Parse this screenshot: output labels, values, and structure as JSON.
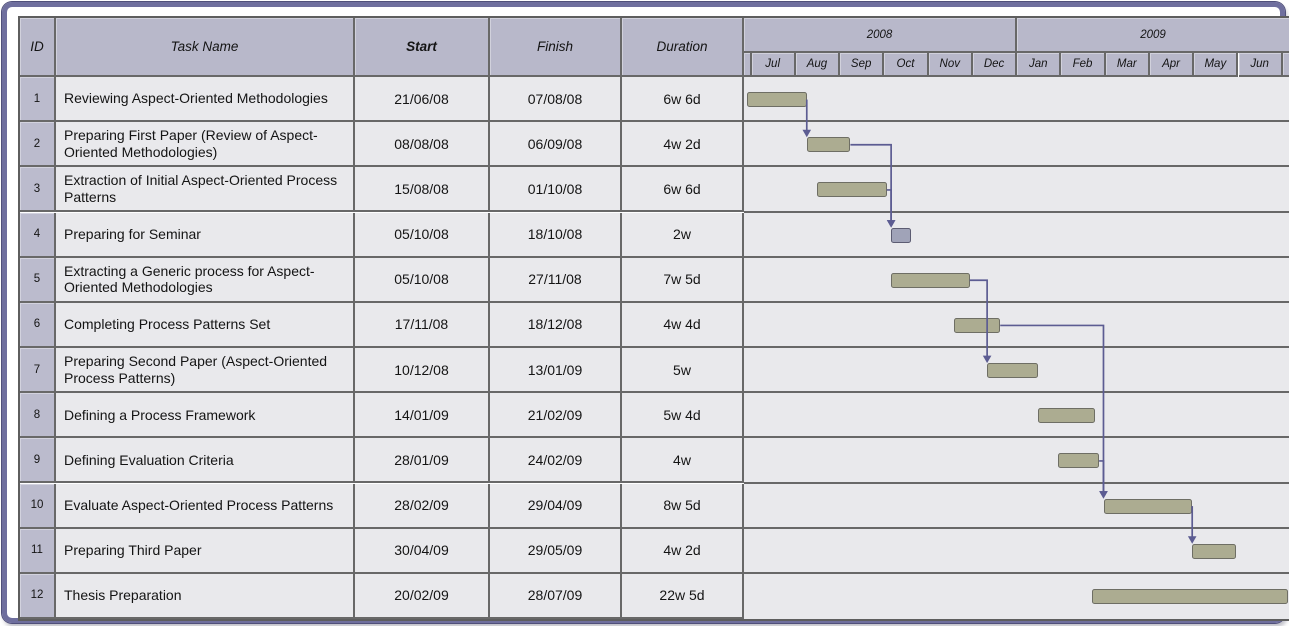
{
  "table": {
    "header": {
      "id": "ID",
      "task_name": "Task Name",
      "start": "Start",
      "finish": "Finish",
      "duration": "Duration"
    },
    "rows": [
      {
        "id": "1",
        "name": "Reviewing Aspect-Oriented Methodologies",
        "start": "21/06/08",
        "finish": "07/08/08",
        "duration": "6w 6d"
      },
      {
        "id": "2",
        "name": "Preparing First Paper (Review of Aspect-Oriented Methodologies)",
        "start": "08/08/08",
        "finish": "06/09/08",
        "duration": "4w 2d"
      },
      {
        "id": "3",
        "name": "Extraction of Initial Aspect-Oriented Process Patterns",
        "start": "15/08/08",
        "finish": "01/10/08",
        "duration": "6w 6d"
      },
      {
        "id": "4",
        "name": "Preparing for Seminar",
        "start": "05/10/08",
        "finish": "18/10/08",
        "duration": "2w"
      },
      {
        "id": "5",
        "name": "Extracting a Generic process for Aspect-Oriented Methodologies",
        "start": "05/10/08",
        "finish": "27/11/08",
        "duration": "7w 5d"
      },
      {
        "id": "6",
        "name": "Completing Process Patterns Set",
        "start": "17/11/08",
        "finish": "18/12/08",
        "duration": "4w 4d"
      },
      {
        "id": "7",
        "name": "Preparing Second Paper (Aspect-Oriented Process Patterns)",
        "start": "10/12/08",
        "finish": "13/01/09",
        "duration": "5w"
      },
      {
        "id": "8",
        "name": "Defining a Process Framework",
        "start": "14/01/09",
        "finish": "21/02/09",
        "duration": "5w 4d"
      },
      {
        "id": "9",
        "name": "Defining Evaluation Criteria",
        "start": "28/01/09",
        "finish": "24/02/09",
        "duration": "4w"
      },
      {
        "id": "10",
        "name": "Evaluate Aspect-Oriented Process Patterns",
        "start": "28/02/09",
        "finish": "29/04/09",
        "duration": "8w 5d"
      },
      {
        "id": "11",
        "name": "Preparing Third Paper",
        "start": "30/04/09",
        "finish": "29/05/09",
        "duration": "4w 2d"
      },
      {
        "id": "12",
        "name": "Thesis Preparation",
        "start": "20/02/09",
        "finish": "28/07/09",
        "duration": "22w 5d"
      }
    ]
  },
  "timeline": {
    "years": [
      {
        "label": "2008",
        "months": [
          "Jul",
          "Aug",
          "Sep",
          "Oct",
          "Nov",
          "Dec"
        ]
      },
      {
        "label": "2009",
        "months": [
          "Jan",
          "Feb",
          "Mar",
          "Apr",
          "May",
          "Jun"
        ]
      }
    ]
  },
  "chart_data": {
    "type": "gantt",
    "title": "",
    "timeline_visible_start": "2008-06-25",
    "timeline_visible_end": "2009-07-06",
    "scale": "months",
    "tasks": [
      {
        "id": 1,
        "name": "Reviewing Aspect-Oriented Methodologies",
        "start": "2008-06-21",
        "finish": "2008-08-07",
        "duration": "6w 6d",
        "style": "normal"
      },
      {
        "id": 2,
        "name": "Preparing First Paper (Review of Aspect-Oriented Methodologies)",
        "start": "2008-08-08",
        "finish": "2008-09-06",
        "duration": "4w 2d",
        "style": "normal"
      },
      {
        "id": 3,
        "name": "Extraction of Initial Aspect-Oriented Process Patterns",
        "start": "2008-08-15",
        "finish": "2008-10-01",
        "duration": "6w 6d",
        "style": "normal"
      },
      {
        "id": 4,
        "name": "Preparing for Seminar",
        "start": "2008-10-05",
        "finish": "2008-10-18",
        "duration": "2w",
        "style": "highlight"
      },
      {
        "id": 5,
        "name": "Extracting a Generic process for Aspect-Oriented Methodologies",
        "start": "2008-10-05",
        "finish": "2008-11-27",
        "duration": "7w 5d",
        "style": "normal"
      },
      {
        "id": 6,
        "name": "Completing Process Patterns Set",
        "start": "2008-11-17",
        "finish": "2008-12-18",
        "duration": "4w 4d",
        "style": "normal"
      },
      {
        "id": 7,
        "name": "Preparing Second Paper (Aspect-Oriented Process Patterns)",
        "start": "2008-12-10",
        "finish": "2009-01-13",
        "duration": "5w",
        "style": "normal"
      },
      {
        "id": 8,
        "name": "Defining a Process Framework",
        "start": "2009-01-14",
        "finish": "2009-02-21",
        "duration": "5w 4d",
        "style": "normal"
      },
      {
        "id": 9,
        "name": "Defining Evaluation Criteria",
        "start": "2009-01-28",
        "finish": "2009-02-24",
        "duration": "4w",
        "style": "normal"
      },
      {
        "id": 10,
        "name": "Evaluate Aspect-Oriented Process Patterns",
        "start": "2009-02-28",
        "finish": "2009-04-29",
        "duration": "8w 5d",
        "style": "normal"
      },
      {
        "id": 11,
        "name": "Preparing Third Paper",
        "start": "2009-04-30",
        "finish": "2009-05-29",
        "duration": "4w 2d",
        "style": "normal"
      },
      {
        "id": 12,
        "name": "Thesis Preparation",
        "start": "2009-02-20",
        "finish": "2009-07-28",
        "duration": "22w 5d",
        "style": "normal"
      }
    ],
    "links": [
      {
        "from": 1,
        "to": 2
      },
      {
        "from": 2,
        "to": 4
      },
      {
        "from": 3,
        "to": 4
      },
      {
        "from": 5,
        "to": 7
      },
      {
        "from": 6,
        "to": 10
      },
      {
        "from": 9,
        "to": 10
      },
      {
        "from": 10,
        "to": 11
      },
      {
        "from": 10,
        "to": 11
      }
    ],
    "colors": {
      "bar": "#acac91",
      "bar_border": "#6e6e64",
      "highlight_bar": "#a0a3b8",
      "highlight_border": "#5c5c72",
      "link": "#5c5c92",
      "header_bg": "#b8b8ca",
      "id_bg": "#bbbbcd",
      "row_bg": "#e9e9ec",
      "grid": "#686868",
      "frame": "#6f6f9e"
    }
  }
}
